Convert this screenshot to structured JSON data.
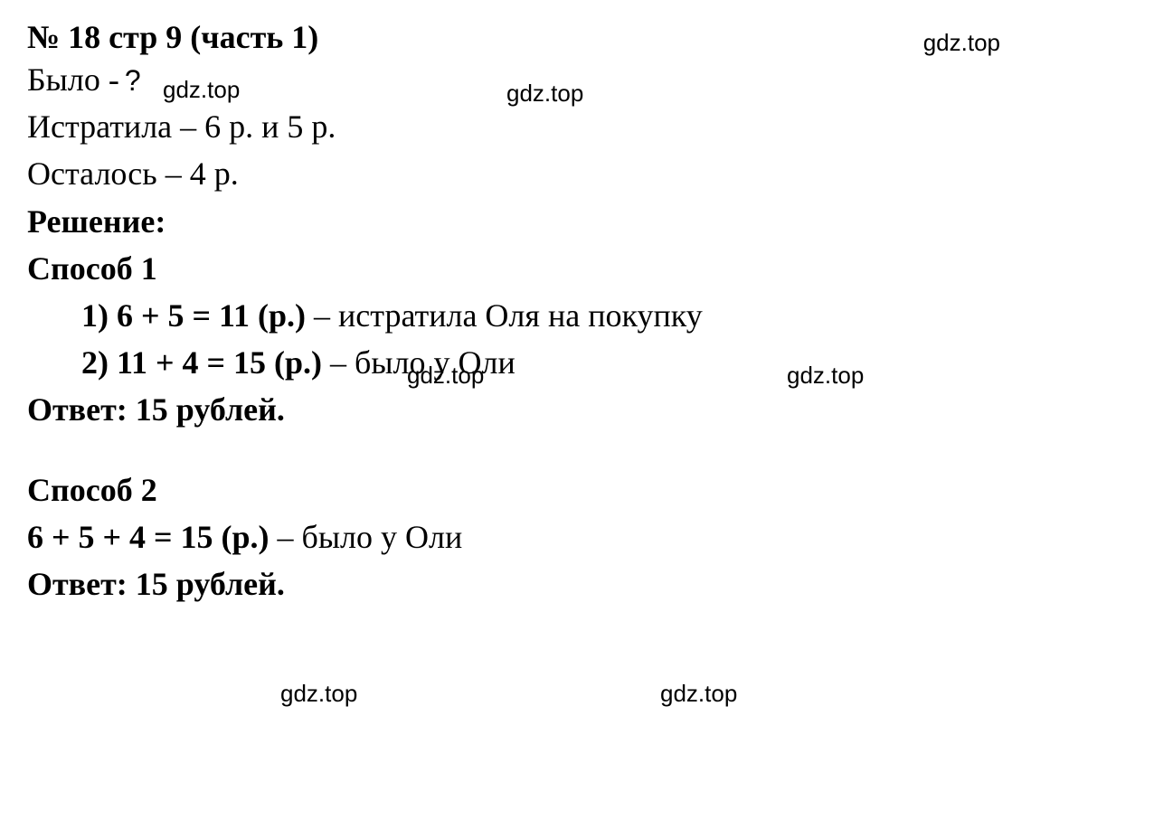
{
  "title": "№ 18 стр 9 (часть 1)",
  "watermark": "gdz.top",
  "given": {
    "line1_prefix": "Было - ",
    "line1_q": "?",
    "line2": "Истратила – 6 р. и 5 р.",
    "line3": "Осталось – 4 р."
  },
  "solution_label": "Решение:",
  "method1": {
    "label": "Способ 1",
    "step1_bold": "1)  6 + 5 = 11 (р.)",
    "step1_rest": " – истратила Оля на покупку",
    "step2_bold": "2)  11 + 4 = 15 (р.)",
    "step2_rest": " – было у Оли",
    "answer": "Ответ: 15 рублей."
  },
  "method2": {
    "label": "Способ 2",
    "expr_bold": "6 + 5 + 4 = 15 (р.)",
    "expr_rest": " – было у Оли",
    "answer": "Ответ: 15 рублей."
  },
  "colors": {
    "text": "#000000",
    "background": "#ffffff"
  },
  "typography": {
    "main_font": "Times New Roman",
    "watermark_font": "Arial",
    "main_fontsize": 36,
    "watermark_fontsize": 26
  }
}
